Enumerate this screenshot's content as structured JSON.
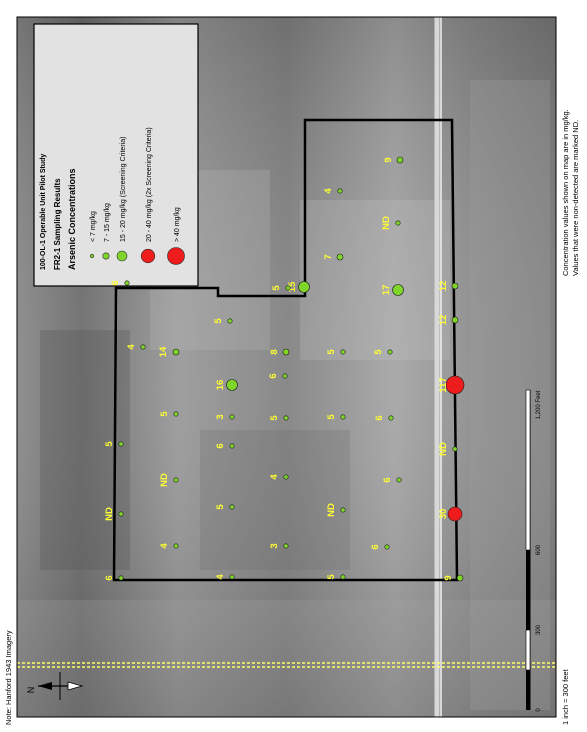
{
  "legend": {
    "study_name": "100-OL-1 Operable Unit Pilot Study",
    "subtitle": "FR2-1 Sampling Results",
    "heading": "Arsenic Concentrations",
    "entries": [
      {
        "label": "< 7 mg/kg",
        "color": "#7fd52a"
      },
      {
        "label": "7 - 15 mg/kg",
        "color": "#7fd52a"
      },
      {
        "label": "15 - 20 mg/kg (Screening Criteria)",
        "color": "#7fd52a"
      },
      {
        "label": "20 - 40 mg/kg (2x Screening Criteria)",
        "color": "#ee1c1c"
      },
      {
        "label": "> 40 mg/kg",
        "color": "#ee1c1c"
      }
    ]
  },
  "notes": {
    "imagery": "Note: Hanford 1943 Imagery",
    "scale_text": "1 inch = 300 feet",
    "concentration_note_1": "Concentration values shown on map are in mg/kg.",
    "concentration_note_2": "Values that were non-detected are marked ND."
  },
  "scale_bar": {
    "ticks": [
      "0",
      "300",
      "600",
      "1,200 Feet"
    ]
  },
  "north_arrow": {
    "label": "N",
    "icon": "north-arrow-icon"
  },
  "samples": [
    {
      "label": "6"
    },
    {
      "label": "4"
    },
    {
      "label": "14"
    },
    {
      "label": "4"
    },
    {
      "label": "9"
    },
    {
      "label": "4"
    },
    {
      "label": "ND"
    },
    {
      "label": "6"
    },
    {
      "label": "9"
    },
    {
      "label": "12"
    },
    {
      "label": "5"
    },
    {
      "label": "ND"
    },
    {
      "label": "5"
    },
    {
      "label": "4"
    },
    {
      "label": "ND"
    },
    {
      "label": "16"
    },
    {
      "label": "5"
    },
    {
      "label": "15"
    },
    {
      "label": "5"
    },
    {
      "label": "4"
    },
    {
      "label": "3"
    },
    {
      "label": "6"
    },
    {
      "label": "5"
    },
    {
      "label": "5"
    },
    {
      "label": "8"
    },
    {
      "label": "7"
    },
    {
      "label": "17"
    },
    {
      "label": "5"
    },
    {
      "label": "ND"
    },
    {
      "label": "6"
    },
    {
      "label": "3"
    },
    {
      "label": "5"
    },
    {
      "label": "5"
    },
    {
      "label": "6"
    },
    {
      "label": "12"
    },
    {
      "label": "117"
    },
    {
      "label": "ND"
    },
    {
      "label": "30"
    },
    {
      "label": "6"
    },
    {
      "label": "5"
    },
    {
      "label": "6"
    }
  ]
}
